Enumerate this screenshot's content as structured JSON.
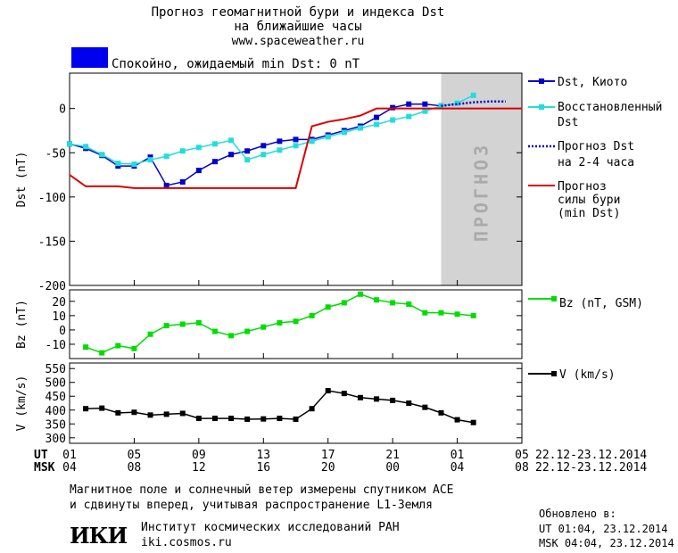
{
  "header": {
    "title_line1": "Прогноз геомагнитной бури и индекса Dst",
    "title_line2": "на ближайшие часы",
    "url": "www.spaceweather.ru",
    "status_text": "Спокойно, ожидаемый min Dst: 0 nT",
    "status_color": "#0000ee"
  },
  "legend": {
    "dst_kyoto": "Dst, Киото",
    "restored_1": "Восстановленный",
    "restored_2": "Dst",
    "forecast_1": "Прогноз Dst",
    "forecast_2": "на 2-4 часа",
    "storm_1": "Прогноз",
    "storm_2": "силы бури",
    "storm_3": "(min Dst)",
    "bz": "Bz (nT, GSM)",
    "v": "V (km/s)"
  },
  "prognoz_label": "ПРОГНОЗ",
  "time_axis": {
    "ut_label": "UT",
    "msk_label": "MSK",
    "ut_ticks": [
      "01",
      "05",
      "09",
      "13",
      "17",
      "21",
      "01",
      "05"
    ],
    "msk_ticks": [
      "04",
      "08",
      "12",
      "16",
      "20",
      "00",
      "04",
      "08"
    ],
    "ut_range": "22.12-23.12.2014",
    "msk_range": "22.12-23.12.2014"
  },
  "footer": {
    "note_line1": "Магнитное поле и солнечный ветер измерены спутником ACE",
    "note_line2": "и сдвинуты вперед, учитывая распространение L1-Земля",
    "institute": "Институт космических исследований РАН",
    "institute_url": "iki.cosmos.ru",
    "logo_text": "ИКИ",
    "updated_label": "Обновлено в:",
    "updated_ut": "UT  01:04, 23.12.2014",
    "updated_msk": "MSK 04:04, 23.12.2014"
  },
  "chart_data": [
    {
      "type": "line",
      "ylabel": "Dst (nT)",
      "ylim": [
        -200,
        40
      ],
      "yticks": [
        0,
        -50,
        -100,
        -150,
        -200
      ],
      "xlim": [
        0,
        28
      ],
      "forecast_region": [
        23,
        28
      ],
      "series": [
        {
          "name": "Dst, Киото",
          "color": "#0000cc",
          "x": [
            0,
            1,
            2,
            3,
            4,
            5,
            6,
            7,
            8,
            9,
            10,
            11,
            12,
            13,
            14,
            15,
            16,
            17,
            18,
            19,
            20,
            21,
            22,
            23
          ],
          "y": [
            -40,
            -45,
            -53,
            -65,
            -65,
            -55,
            -87,
            -83,
            -70,
            -60,
            -52,
            -48,
            -42,
            -37,
            -35,
            -35,
            -30,
            -25,
            -20,
            -10,
            1,
            5,
            5,
            3
          ]
        },
        {
          "name": "Восстановленный Dst",
          "color": "#22dddd",
          "x": [
            0,
            1,
            2,
            3,
            4,
            5,
            6,
            7,
            8,
            9,
            10,
            11,
            12,
            13,
            14,
            15,
            16,
            17,
            18,
            19,
            20,
            21,
            22,
            23,
            24,
            25
          ],
          "y": [
            -40,
            -43,
            -52,
            -62,
            -63,
            -58,
            -54,
            -48,
            -44,
            -40,
            -36,
            -58,
            -52,
            -47,
            -42,
            -37,
            -32,
            -27,
            -22,
            -18,
            -13,
            -9,
            -3,
            3,
            6,
            15
          ]
        },
        {
          "name": "Прогноз Dst на 2-4 часа",
          "color": "#0000cc",
          "x": [
            23,
            24,
            25,
            26,
            27
          ],
          "y": [
            3,
            5,
            7,
            8,
            8
          ]
        },
        {
          "name": "Прогноз силы бури (min Dst)",
          "color": "#dd0000",
          "x": [
            0,
            1,
            2,
            3,
            4,
            5,
            6,
            7,
            8,
            9,
            10,
            11,
            12,
            13,
            14,
            15,
            16,
            17,
            18,
            19,
            20,
            21,
            22,
            23,
            24,
            25,
            26,
            27,
            28
          ],
          "y": [
            -75,
            -88,
            -88,
            -88,
            -90,
            -90,
            -90,
            -90,
            -90,
            -90,
            -90,
            -90,
            -90,
            -90,
            -90,
            -20,
            -15,
            -12,
            -8,
            0,
            0,
            0,
            0,
            0,
            0,
            0,
            0,
            0,
            0
          ]
        }
      ]
    },
    {
      "type": "line",
      "ylabel": "Bz (nT)",
      "ylim": [
        -20,
        28
      ],
      "yticks": [
        20,
        10,
        0,
        -10
      ],
      "xlim": [
        0,
        28
      ],
      "series": [
        {
          "name": "Bz (nT, GSM)",
          "color": "#00dd00",
          "x": [
            1,
            2,
            3,
            4,
            5,
            6,
            7,
            8,
            9,
            10,
            11,
            12,
            13,
            14,
            15,
            16,
            17,
            18,
            19,
            20,
            21,
            22,
            23,
            24,
            25
          ],
          "y": [
            -12,
            -16,
            -11,
            -13,
            -3,
            3,
            4,
            5,
            -1,
            -4,
            -1,
            2,
            5,
            6,
            10,
            16,
            19,
            25,
            21,
            19,
            18,
            12,
            12,
            11,
            10
          ]
        }
      ]
    },
    {
      "type": "line",
      "ylabel": "V (km/s)",
      "ylim": [
        280,
        570
      ],
      "yticks": [
        550,
        500,
        450,
        400,
        350,
        300
      ],
      "xlim": [
        0,
        28
      ],
      "series": [
        {
          "name": "V (km/s)",
          "color": "#000000",
          "x": [
            1,
            2,
            3,
            4,
            5,
            6,
            7,
            8,
            9,
            10,
            11,
            12,
            13,
            14,
            15,
            16,
            17,
            18,
            19,
            20,
            21,
            22,
            23,
            24,
            25
          ],
          "y": [
            405,
            407,
            390,
            392,
            382,
            385,
            388,
            370,
            370,
            370,
            367,
            368,
            370,
            367,
            405,
            470,
            460,
            445,
            440,
            435,
            425,
            410,
            390,
            365,
            355
          ]
        }
      ]
    }
  ]
}
